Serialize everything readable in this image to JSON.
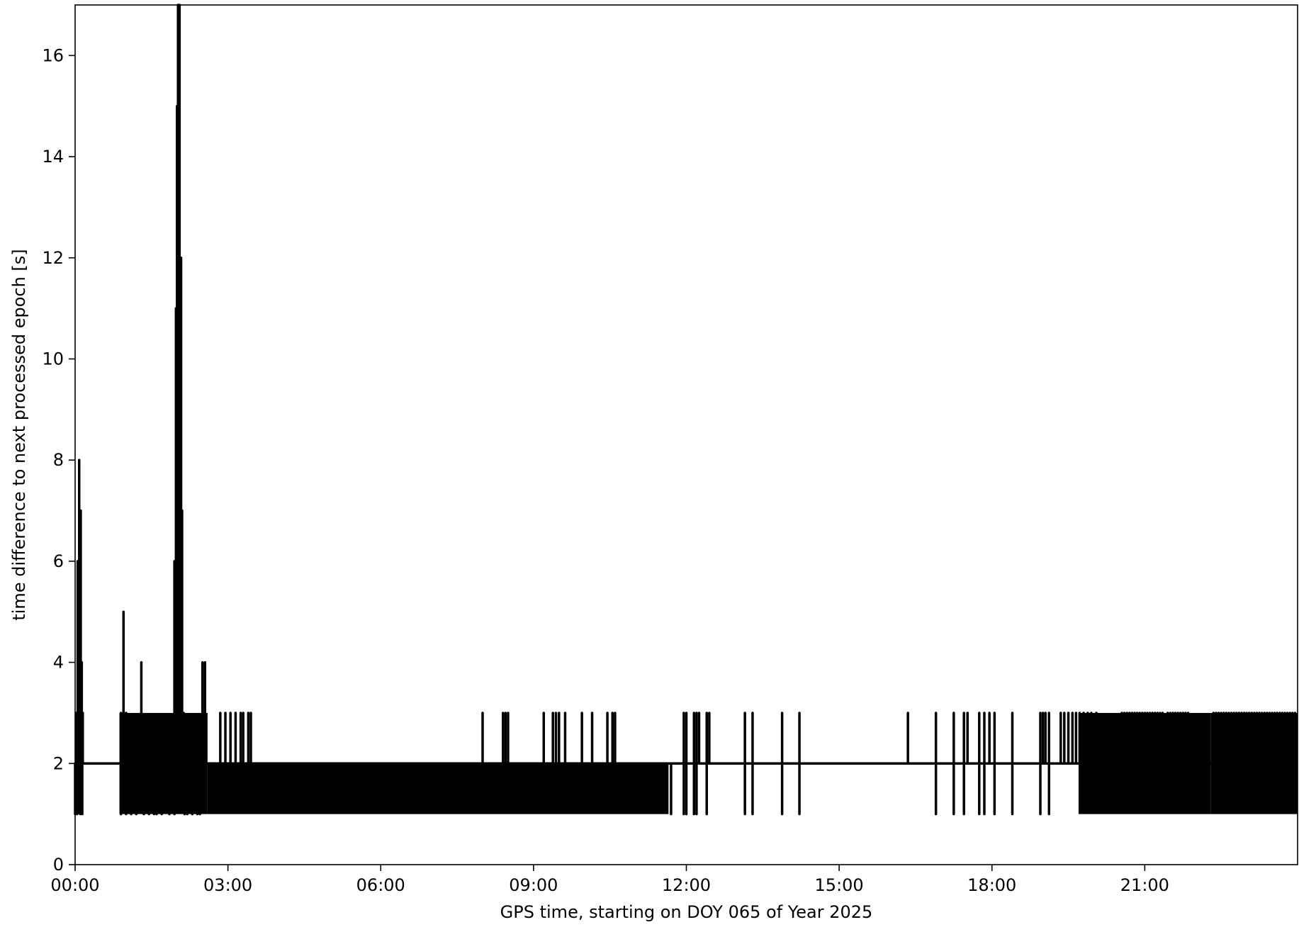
{
  "chart_data": {
    "type": "line",
    "title": "",
    "xlabel": "GPS time, starting on DOY 065 of Year 2025",
    "ylabel": "time difference to next processed epoch [s]",
    "xlim": [
      0,
      24
    ],
    "ylim": [
      0,
      17
    ],
    "x_unit": "hours of day",
    "x_ticks": [
      {
        "value": 0,
        "label": "00:00"
      },
      {
        "value": 3,
        "label": "03:00"
      },
      {
        "value": 6,
        "label": "06:00"
      },
      {
        "value": 9,
        "label": "09:00"
      },
      {
        "value": 12,
        "label": "12:00"
      },
      {
        "value": 15,
        "label": "15:00"
      },
      {
        "value": 18,
        "label": "18:00"
      },
      {
        "value": 21,
        "label": "21:00"
      }
    ],
    "y_ticks": [
      {
        "value": 0,
        "label": "0"
      },
      {
        "value": 2,
        "label": "2"
      },
      {
        "value": 4,
        "label": "4"
      },
      {
        "value": 6,
        "label": "6"
      },
      {
        "value": 8,
        "label": "8"
      },
      {
        "value": 10,
        "label": "10"
      },
      {
        "value": 12,
        "label": "12"
      },
      {
        "value": 14,
        "label": "14"
      },
      {
        "value": 16,
        "label": "16"
      }
    ],
    "grid": false,
    "legend": false,
    "line_color": "#000000",
    "baseline": 2,
    "series": [
      {
        "spikes": [
          {
            "x": 0.02,
            "y": 3
          },
          {
            "x": 0.05,
            "y": 6
          },
          {
            "x": 0.08,
            "y": 8
          },
          {
            "x": 0.11,
            "y": 7
          },
          {
            "x": 0.13,
            "y": 4
          },
          {
            "x": 0.15,
            "y": 3
          },
          {
            "x": 0.9,
            "y": 3
          },
          {
            "x": 0.95,
            "y": 5
          },
          {
            "x": 1.0,
            "y": 3
          },
          {
            "x": 1.3,
            "y": 4
          },
          {
            "x": 1.95,
            "y": 6
          },
          {
            "x": 1.98,
            "y": 11
          },
          {
            "x": 2.0,
            "y": 15
          },
          {
            "x": 2.02,
            "y": 17
          },
          {
            "x": 2.05,
            "y": 17
          },
          {
            "x": 2.08,
            "y": 12
          },
          {
            "x": 2.1,
            "y": 7
          },
          {
            "x": 2.13,
            "y": 3
          },
          {
            "x": 2.5,
            "y": 4
          },
          {
            "x": 2.55,
            "y": 4
          },
          {
            "x": 2.85,
            "y": 3
          },
          {
            "x": 2.95,
            "y": 3
          },
          {
            "x": 3.05,
            "y": 3
          },
          {
            "x": 3.15,
            "y": 3
          },
          {
            "x": 3.25,
            "y": 3
          },
          {
            "x": 3.3,
            "y": 3
          },
          {
            "x": 3.4,
            "y": 3
          },
          {
            "x": 3.45,
            "y": 3
          },
          {
            "x": 8.0,
            "y": 3
          },
          {
            "x": 8.4,
            "y": 3
          },
          {
            "x": 8.45,
            "y": 3
          },
          {
            "x": 8.5,
            "y": 3
          },
          {
            "x": 9.2,
            "y": 3
          },
          {
            "x": 9.38,
            "y": 3
          },
          {
            "x": 9.44,
            "y": 3
          },
          {
            "x": 9.5,
            "y": 3
          },
          {
            "x": 9.62,
            "y": 3
          },
          {
            "x": 9.95,
            "y": 3
          },
          {
            "x": 10.15,
            "y": 3
          },
          {
            "x": 10.45,
            "y": 3
          },
          {
            "x": 10.55,
            "y": 3
          },
          {
            "x": 10.6,
            "y": 3
          },
          {
            "x": 11.95,
            "y": 3
          },
          {
            "x": 12.0,
            "y": 3
          },
          {
            "x": 12.15,
            "y": 3
          },
          {
            "x": 12.2,
            "y": 3
          },
          {
            "x": 12.25,
            "y": 3
          },
          {
            "x": 12.4,
            "y": 3
          },
          {
            "x": 12.45,
            "y": 3
          },
          {
            "x": 13.15,
            "y": 3
          },
          {
            "x": 13.3,
            "y": 3
          },
          {
            "x": 13.88,
            "y": 3
          },
          {
            "x": 14.22,
            "y": 3
          },
          {
            "x": 16.35,
            "y": 3
          },
          {
            "x": 16.9,
            "y": 3
          },
          {
            "x": 17.25,
            "y": 3
          },
          {
            "x": 17.45,
            "y": 3
          },
          {
            "x": 17.52,
            "y": 3
          },
          {
            "x": 17.75,
            "y": 3
          },
          {
            "x": 17.85,
            "y": 3
          },
          {
            "x": 17.95,
            "y": 3
          },
          {
            "x": 18.05,
            "y": 3
          },
          {
            "x": 18.4,
            "y": 3
          },
          {
            "x": 18.95,
            "y": 3
          },
          {
            "x": 19.0,
            "y": 3
          },
          {
            "x": 19.05,
            "y": 3
          },
          {
            "x": 19.12,
            "y": 3
          },
          {
            "x": 19.35,
            "y": 3
          },
          {
            "x": 19.42,
            "y": 3
          },
          {
            "x": 19.5,
            "y": 3
          },
          {
            "x": 19.58,
            "y": 3
          },
          {
            "x": 19.65,
            "y": 3
          },
          {
            "x": 19.72,
            "y": 3
          },
          {
            "x": 19.8,
            "y": 3
          },
          {
            "x": 19.88,
            "y": 3
          },
          {
            "x": 19.95,
            "y": 3
          },
          {
            "x": 20.05,
            "y": 3
          },
          {
            "x": 20.55,
            "y": 3
          },
          {
            "x": 20.6,
            "y": 3
          },
          {
            "x": 20.65,
            "y": 3
          },
          {
            "x": 20.7,
            "y": 3
          },
          {
            "x": 20.75,
            "y": 3
          },
          {
            "x": 20.8,
            "y": 3
          },
          {
            "x": 20.85,
            "y": 3
          },
          {
            "x": 20.9,
            "y": 3
          },
          {
            "x": 20.95,
            "y": 3
          },
          {
            "x": 21.0,
            "y": 3
          },
          {
            "x": 21.05,
            "y": 3
          },
          {
            "x": 21.1,
            "y": 3
          },
          {
            "x": 21.15,
            "y": 3
          },
          {
            "x": 21.2,
            "y": 3
          },
          {
            "x": 21.25,
            "y": 3
          },
          {
            "x": 21.3,
            "y": 3
          },
          {
            "x": 21.35,
            "y": 3
          },
          {
            "x": 21.45,
            "y": 3
          },
          {
            "x": 21.5,
            "y": 3
          },
          {
            "x": 21.55,
            "y": 3
          },
          {
            "x": 21.6,
            "y": 3
          },
          {
            "x": 21.65,
            "y": 3
          },
          {
            "x": 21.7,
            "y": 3
          },
          {
            "x": 21.75,
            "y": 3
          },
          {
            "x": 21.8,
            "y": 3
          },
          {
            "x": 21.85,
            "y": 3
          },
          {
            "x": 22.35,
            "y": 3
          },
          {
            "x": 22.4,
            "y": 3
          },
          {
            "x": 22.45,
            "y": 3
          },
          {
            "x": 22.5,
            "y": 3
          },
          {
            "x": 22.55,
            "y": 3
          },
          {
            "x": 22.6,
            "y": 3
          },
          {
            "x": 22.65,
            "y": 3
          },
          {
            "x": 22.7,
            "y": 3
          },
          {
            "x": 22.75,
            "y": 3
          },
          {
            "x": 22.8,
            "y": 3
          },
          {
            "x": 22.85,
            "y": 3
          },
          {
            "x": 22.9,
            "y": 3
          },
          {
            "x": 22.95,
            "y": 3
          },
          {
            "x": 23.0,
            "y": 3
          },
          {
            "x": 23.05,
            "y": 3
          },
          {
            "x": 23.1,
            "y": 3
          },
          {
            "x": 23.15,
            "y": 3
          },
          {
            "x": 23.2,
            "y": 3
          },
          {
            "x": 23.25,
            "y": 3
          },
          {
            "x": 23.3,
            "y": 3
          },
          {
            "x": 23.35,
            "y": 3
          },
          {
            "x": 23.4,
            "y": 3
          },
          {
            "x": 23.45,
            "y": 3
          },
          {
            "x": 23.5,
            "y": 3
          },
          {
            "x": 23.55,
            "y": 3
          },
          {
            "x": 23.6,
            "y": 3
          },
          {
            "x": 23.65,
            "y": 3
          },
          {
            "x": 23.7,
            "y": 3
          },
          {
            "x": 23.75,
            "y": 3
          },
          {
            "x": 23.8,
            "y": 3
          },
          {
            "x": 23.85,
            "y": 3
          },
          {
            "x": 23.9,
            "y": 3
          },
          {
            "x": 23.95,
            "y": 3
          }
        ],
        "dips": [
          {
            "x": 0.0,
            "y": 1
          },
          {
            "x": 0.04,
            "y": 1
          },
          {
            "x": 0.1,
            "y": 1
          },
          {
            "x": 0.14,
            "y": 1
          },
          {
            "x": 0.9,
            "y": 1
          },
          {
            "x": 1.0,
            "y": 1
          },
          {
            "x": 1.1,
            "y": 1
          },
          {
            "x": 1.2,
            "y": 1
          },
          {
            "x": 1.35,
            "y": 1
          },
          {
            "x": 1.45,
            "y": 1
          },
          {
            "x": 1.55,
            "y": 1
          },
          {
            "x": 1.6,
            "y": 1
          },
          {
            "x": 1.7,
            "y": 1
          },
          {
            "x": 1.85,
            "y": 1
          },
          {
            "x": 1.95,
            "y": 1
          },
          {
            "x": 2.15,
            "y": 1
          },
          {
            "x": 2.2,
            "y": 1
          },
          {
            "x": 2.3,
            "y": 1
          },
          {
            "x": 2.4,
            "y": 1
          },
          {
            "x": 2.45,
            "y": 1
          },
          {
            "x": 11.7,
            "y": 1
          },
          {
            "x": 11.95,
            "y": 1
          },
          {
            "x": 12.0,
            "y": 1
          },
          {
            "x": 12.15,
            "y": 1
          },
          {
            "x": 12.2,
            "y": 1
          },
          {
            "x": 12.4,
            "y": 1
          },
          {
            "x": 13.15,
            "y": 1
          },
          {
            "x": 13.3,
            "y": 1
          },
          {
            "x": 13.88,
            "y": 1
          },
          {
            "x": 14.22,
            "y": 1
          },
          {
            "x": 16.9,
            "y": 1
          },
          {
            "x": 17.25,
            "y": 1
          },
          {
            "x": 17.45,
            "y": 1
          },
          {
            "x": 17.75,
            "y": 1
          },
          {
            "x": 17.85,
            "y": 1
          },
          {
            "x": 18.05,
            "y": 1
          },
          {
            "x": 18.4,
            "y": 1
          },
          {
            "x": 18.95,
            "y": 1
          },
          {
            "x": 19.12,
            "y": 1
          }
        ],
        "dense_bands": [
          {
            "x_start": 0.0,
            "x_end": 0.15,
            "y_low": 1,
            "y_high": 3
          },
          {
            "x_start": 0.87,
            "x_end": 2.6,
            "y_low": 1,
            "y_high": 3
          },
          {
            "x_start": 2.6,
            "x_end": 11.65,
            "y_low": 1,
            "y_high": 2
          },
          {
            "x_start": 19.7,
            "x_end": 22.3,
            "y_low": 1,
            "y_high": 3
          },
          {
            "x_start": 22.3,
            "x_end": 24.0,
            "y_low": 1,
            "y_high": 3
          }
        ]
      }
    ]
  }
}
